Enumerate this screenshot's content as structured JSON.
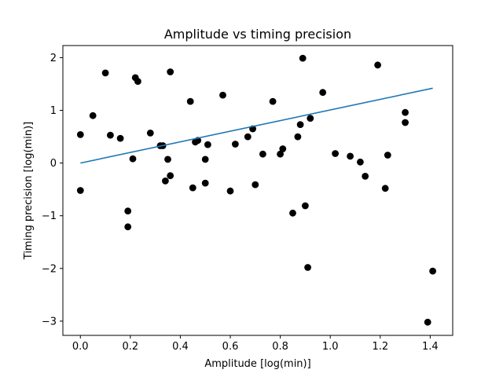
{
  "chart_data": {
    "type": "scatter",
    "title": "Amplitude vs timing precision",
    "xlabel": "Amplitude [log(min)]",
    "ylabel": "Timing precision [log(min)]",
    "xlim": [
      -0.07,
      1.49
    ],
    "ylim": [
      -3.27,
      2.23
    ],
    "xticks": [
      0.0,
      0.2,
      0.4,
      0.6,
      0.8,
      1.0,
      1.2,
      1.4
    ],
    "xtick_labels": [
      "0.0",
      "0.2",
      "0.4",
      "0.6",
      "0.8",
      "1.0",
      "1.2",
      "1.4"
    ],
    "yticks": [
      -3,
      -2,
      -1,
      0,
      1,
      2
    ],
    "ytick_labels": [
      "−3",
      "−2",
      "−1",
      "0",
      "1",
      "2"
    ],
    "grid": false,
    "colors": {
      "points": "#000000",
      "line": "#1f77b4"
    },
    "series": [
      {
        "kind": "scatter",
        "points": [
          [
            0.0,
            0.54
          ],
          [
            0.0,
            -0.52
          ],
          [
            0.05,
            0.9
          ],
          [
            0.1,
            1.71
          ],
          [
            0.12,
            0.53
          ],
          [
            0.16,
            0.47
          ],
          [
            0.19,
            -0.91
          ],
          [
            0.19,
            -1.21
          ],
          [
            0.21,
            0.08
          ],
          [
            0.22,
            1.62
          ],
          [
            0.23,
            1.55
          ],
          [
            0.28,
            0.57
          ],
          [
            0.32,
            0.33
          ],
          [
            0.33,
            0.33
          ],
          [
            0.34,
            -0.34
          ],
          [
            0.35,
            0.07
          ],
          [
            0.36,
            1.73
          ],
          [
            0.36,
            -0.24
          ],
          [
            0.44,
            1.17
          ],
          [
            0.45,
            -0.47
          ],
          [
            0.46,
            0.4
          ],
          [
            0.47,
            0.43
          ],
          [
            0.5,
            -0.38
          ],
          [
            0.5,
            0.07
          ],
          [
            0.51,
            0.35
          ],
          [
            0.57,
            1.29
          ],
          [
            0.6,
            -0.53
          ],
          [
            0.62,
            0.36
          ],
          [
            0.67,
            0.5
          ],
          [
            0.69,
            0.65
          ],
          [
            0.7,
            -0.41
          ],
          [
            0.73,
            0.17
          ],
          [
            0.77,
            1.17
          ],
          [
            0.8,
            0.17
          ],
          [
            0.81,
            0.27
          ],
          [
            0.85,
            -0.95
          ],
          [
            0.87,
            0.5
          ],
          [
            0.88,
            0.73
          ],
          [
            0.89,
            1.99
          ],
          [
            0.9,
            -0.81
          ],
          [
            0.91,
            -1.98
          ],
          [
            0.92,
            0.85
          ],
          [
            0.97,
            1.34
          ],
          [
            1.02,
            0.18
          ],
          [
            1.08,
            0.13
          ],
          [
            1.12,
            0.02
          ],
          [
            1.14,
            -0.25
          ],
          [
            1.19,
            1.86
          ],
          [
            1.22,
            -0.48
          ],
          [
            1.23,
            0.15
          ],
          [
            1.3,
            0.96
          ],
          [
            1.3,
            0.77
          ],
          [
            1.39,
            -3.02
          ],
          [
            1.41,
            -2.05
          ]
        ]
      },
      {
        "kind": "line",
        "points": [
          [
            0.0,
            0.0
          ],
          [
            1.41,
            1.42
          ]
        ]
      }
    ]
  }
}
